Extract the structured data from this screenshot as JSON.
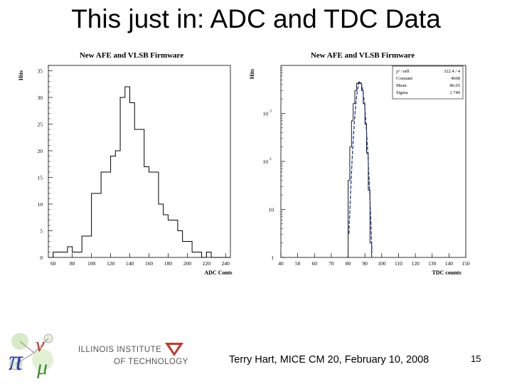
{
  "slide": {
    "title": "This just in:  ADC and TDC Data",
    "footer": "Terry Hart, MICE CM 20, February 10, 2008",
    "page_number": "15",
    "logo_text_line1": "ILLINOIS INSTITUTE",
    "logo_text_line2": "OF TECHNOLOGY",
    "colors": {
      "histogram": "#000000",
      "fit": "#1f3b9e"
    },
    "icons": [
      "mice-logo",
      "illinois-tech-logo"
    ]
  },
  "chart_data": [
    {
      "type": "histogram",
      "title": "New AFE and VLSB Firmware",
      "xlabel": "ADC Conts",
      "ylabel": "Hits",
      "xlim": [
        55,
        245
      ],
      "ylim": [
        0,
        36
      ],
      "xticks": [
        "60",
        "80",
        "100",
        "120",
        "140",
        "160",
        "180",
        "200",
        "220",
        "240"
      ],
      "yticks": [
        "0",
        "5",
        "10",
        "15",
        "20",
        "25",
        "30",
        "35"
      ],
      "bin_width": 5,
      "bin_starts": [
        60,
        65,
        70,
        75,
        80,
        85,
        90,
        95,
        100,
        105,
        110,
        115,
        120,
        125,
        130,
        135,
        140,
        145,
        150,
        155,
        160,
        165,
        170,
        175,
        180,
        185,
        190,
        195,
        200,
        205,
        210,
        215,
        220,
        225,
        230,
        235,
        240
      ],
      "values": [
        1,
        1,
        1,
        2,
        1,
        1,
        4,
        4,
        12,
        12,
        16,
        16,
        19,
        20,
        30,
        32,
        29,
        24,
        24,
        17,
        16,
        16,
        10,
        8,
        7,
        7,
        5,
        3,
        3,
        1,
        1,
        0,
        1,
        0,
        0,
        0,
        0
      ],
      "grid": false,
      "legend": "none"
    },
    {
      "type": "histogram",
      "title": "New AFE and VLSB Firmware",
      "xlabel": "TDC counts",
      "ylabel": "Hits",
      "xlim": [
        40,
        150
      ],
      "ylim": [
        1,
        10000
      ],
      "yscale": "log",
      "xticks": [
        "40",
        "50",
        "60",
        "70",
        "80",
        "90",
        "100",
        "110",
        "120",
        "130",
        "140",
        "150"
      ],
      "yticks": [
        "1",
        "10",
        "10 2",
        "10 3"
      ],
      "bin_width": 1,
      "bin_starts": [
        79,
        80,
        81,
        82,
        83,
        84,
        85,
        86,
        87,
        88,
        89,
        90,
        91,
        92,
        93
      ],
      "values": [
        1,
        40,
        200,
        700,
        1600,
        3000,
        4200,
        4500,
        4200,
        3000,
        1600,
        600,
        150,
        25,
        2
      ],
      "fit": {
        "function": "gaussian",
        "stats": [
          {
            "label": "χ² / ndf",
            "value": "322.4 / 4"
          },
          {
            "label": "Constant",
            "value": "4608"
          },
          {
            "label": "Mean",
            "value": "86.65"
          },
          {
            "label": "Sigma",
            "value": "1.740"
          }
        ]
      },
      "grid": false,
      "legend": "stats box top-right"
    }
  ]
}
